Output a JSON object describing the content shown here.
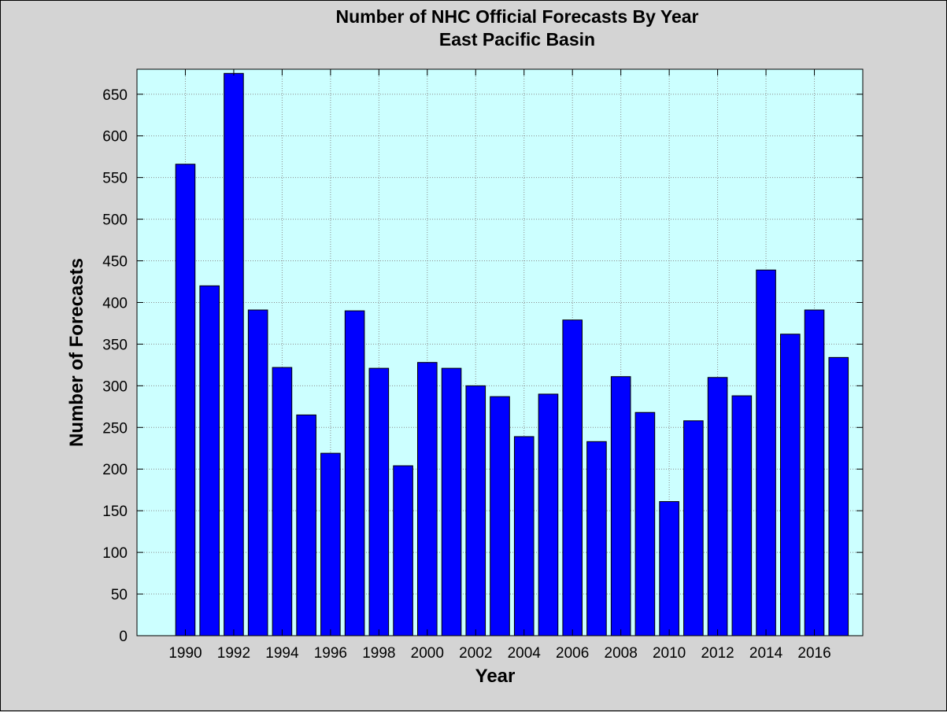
{
  "chart_data": {
    "type": "bar",
    "title": "Number of NHC Official Forecasts By Year",
    "subtitle": "East Pacific Basin",
    "xlabel": "Year",
    "ylabel": "Number of Forecasts",
    "categories": [
      1990,
      1991,
      1992,
      1993,
      1994,
      1995,
      1996,
      1997,
      1998,
      1999,
      2000,
      2001,
      2002,
      2003,
      2004,
      2005,
      2006,
      2007,
      2008,
      2009,
      2010,
      2011,
      2012,
      2013,
      2014,
      2015,
      2016,
      2017
    ],
    "values": [
      566,
      420,
      675,
      391,
      322,
      265,
      219,
      390,
      321,
      204,
      328,
      321,
      300,
      287,
      239,
      290,
      379,
      233,
      311,
      268,
      161,
      258,
      310,
      288,
      439,
      362,
      391,
      334
    ],
    "xtick_labels": [
      "1990",
      "1992",
      "1994",
      "1996",
      "1998",
      "2000",
      "2002",
      "2004",
      "2006",
      "2008",
      "2010",
      "2012",
      "2014",
      "2016"
    ],
    "ytick_values": [
      0,
      50,
      100,
      150,
      200,
      250,
      300,
      350,
      400,
      450,
      500,
      550,
      600,
      650
    ],
    "ylim": [
      0,
      680
    ],
    "grid": true,
    "colors": {
      "bar_fill": "#0000ff",
      "bar_edge": "#000000",
      "plot_background": "#ccffff",
      "figure_background": "#d4d4d4",
      "grid": "#8c8c8c"
    }
  }
}
